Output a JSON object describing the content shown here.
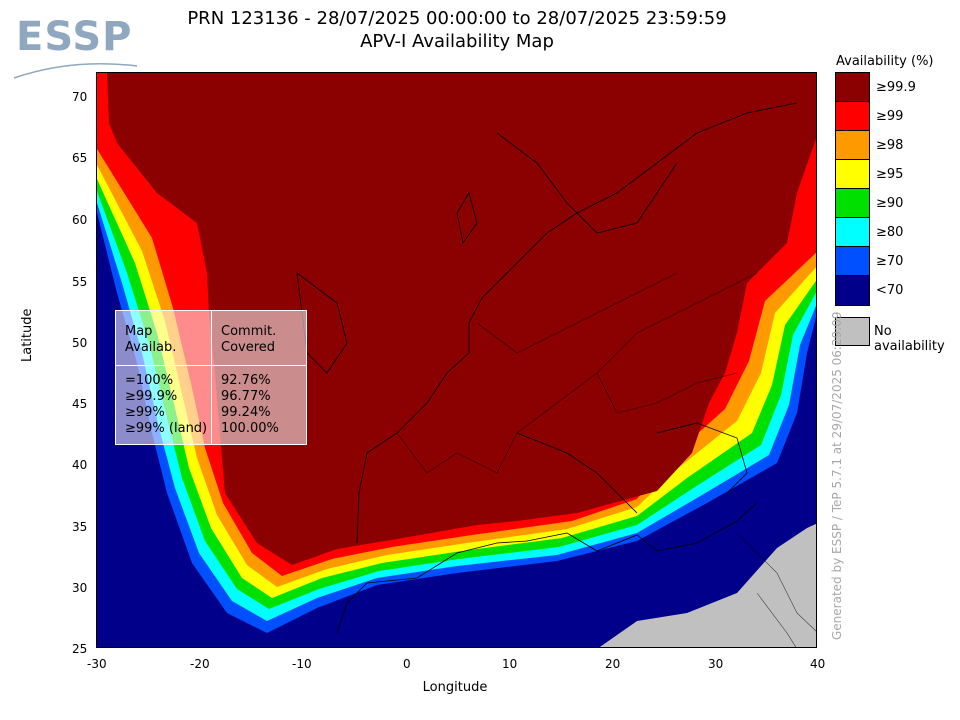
{
  "logo": {
    "text": "ESSP"
  },
  "title": {
    "line1": "PRN 123136 - 28/07/2025 00:00:00 to 28/07/2025 23:59:59",
    "line2": "APV-I Availability Map"
  },
  "axes": {
    "xlabel": "Longitude",
    "ylabel": "Latitude",
    "xticks": [
      "-30",
      "-20",
      "-10",
      "0",
      "10",
      "20",
      "30",
      "40"
    ],
    "yticks": [
      "70",
      "65",
      "60",
      "55",
      "50",
      "45",
      "40",
      "35",
      "30",
      "25"
    ]
  },
  "stats_table": {
    "header_left": [
      "Map",
      "Availab."
    ],
    "header_right": [
      "Commit.",
      "Covered"
    ],
    "rows": [
      {
        "label": "=100%",
        "value": "92.76%"
      },
      {
        "label": "≥99.9%",
        "value": "96.77%"
      },
      {
        "label": "≥99%",
        "value": "99.24%"
      },
      {
        "label": "≥99% (land)",
        "value": "100.00%"
      }
    ]
  },
  "legend": {
    "title": "Availability (%)",
    "items": [
      {
        "label": "≥99.9",
        "color": "#8b0000"
      },
      {
        "label": "≥99",
        "color": "#ff0000"
      },
      {
        "label": "≥98",
        "color": "#ff9900"
      },
      {
        "label": "≥95",
        "color": "#ffff00"
      },
      {
        "label": "≥90",
        "color": "#00e000"
      },
      {
        "label": "≥80",
        "color": "#00ffff"
      },
      {
        "label": "≥70",
        "color": "#0050ff"
      },
      {
        "label": "<70",
        "color": "#00008b"
      }
    ],
    "no_availability": {
      "label": "No availability",
      "color": "#c0c0c0"
    }
  },
  "watermark": "Generated by ESSP / TeP 5.7.1 at 29/07/2025 06:29:09"
}
